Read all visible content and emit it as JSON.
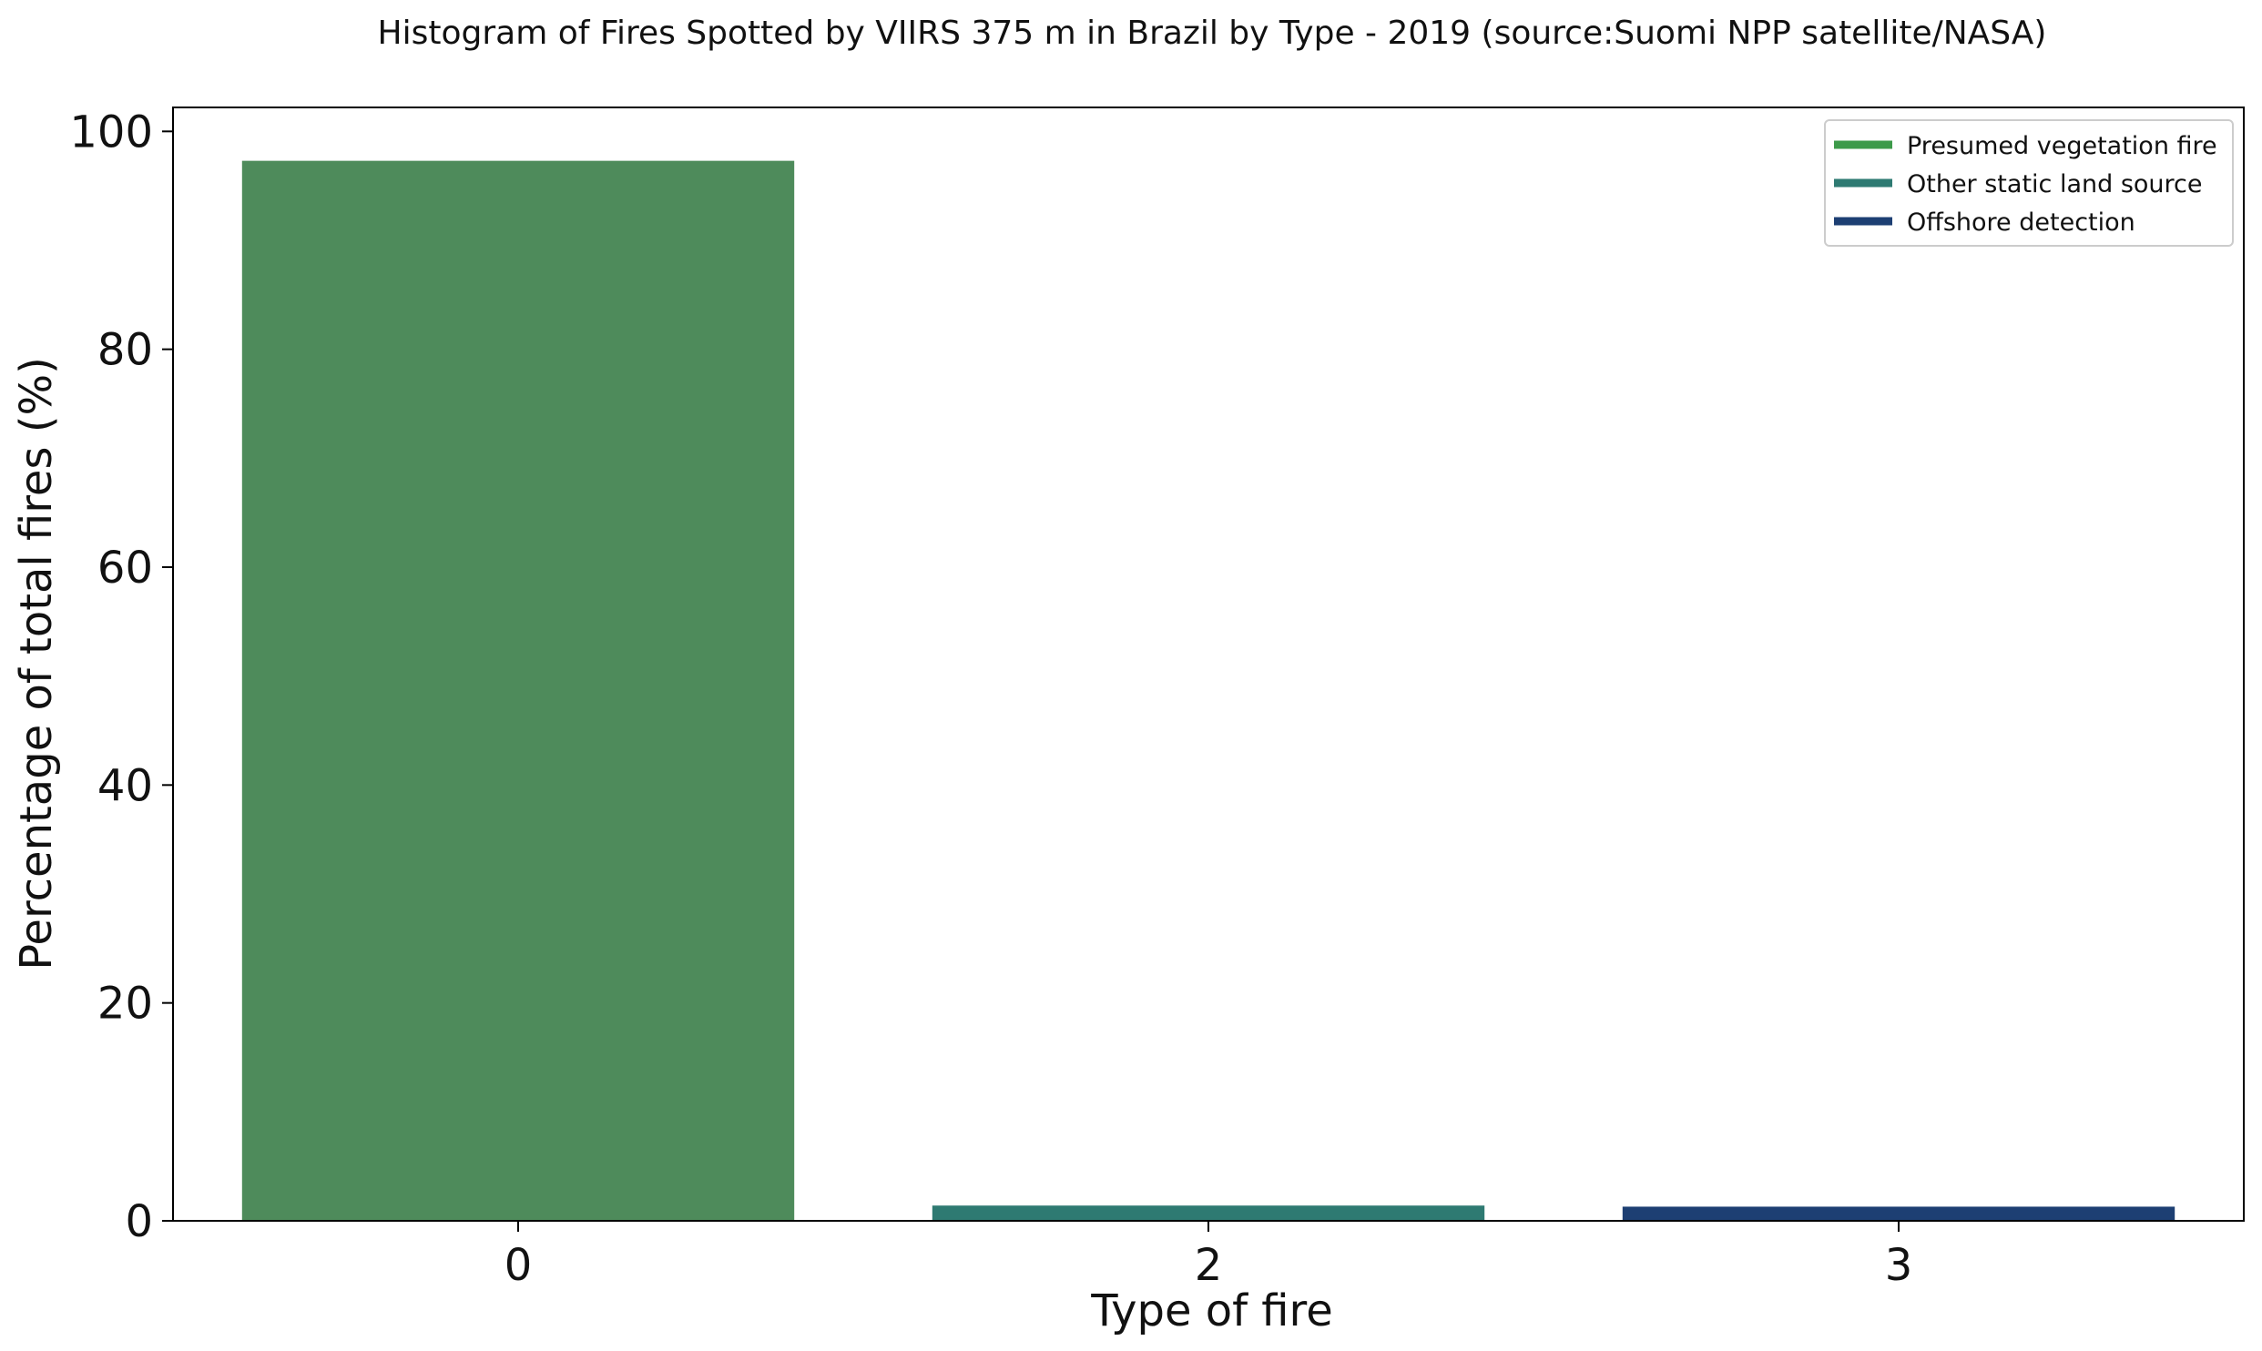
{
  "chart_data": {
    "type": "bar",
    "title": "Histogram of Fires Spotted by VIIRS 375 m in Brazil by Type - 2019 (source:Suomi NPP satellite/NASA)",
    "xlabel": "Type of fire",
    "ylabel": "Percentage of total fires (%)",
    "categories": [
      "0",
      "2",
      "3"
    ],
    "values": [
      97.3,
      1.4,
      1.3
    ],
    "colors": [
      "#4e8b5b",
      "#2e7a72",
      "#1d3f73"
    ],
    "ylim": [
      0,
      102.2
    ],
    "yticks": [
      0,
      20,
      40,
      60,
      80,
      100
    ],
    "grid": false,
    "legend": {
      "placement": "top-right",
      "entries": [
        {
          "label": "Presumed vegetation fire",
          "color": "#3d9a4a"
        },
        {
          "label": "Other static land source",
          "color": "#2e7a72"
        },
        {
          "label": "Offshore detection",
          "color": "#1d3f73"
        }
      ]
    }
  }
}
